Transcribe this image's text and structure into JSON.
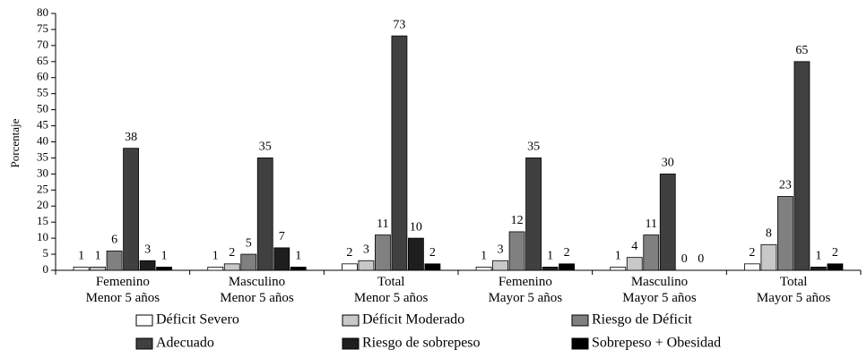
{
  "chart_data": {
    "type": "bar",
    "y_label": "Porcentaje",
    "categories": [
      "Femenino\nMenor 5 años",
      "Masculino\nMenor 5 años",
      "Total\nMenor 5 años",
      "Femenino\nMayor 5 años",
      "Masculino\nMayor 5 años",
      "Total\nMayor 5 años"
    ],
    "series": [
      {
        "name": "Déficit Severo",
        "color": "#ffffff",
        "values": [
          1,
          1,
          2,
          1,
          1,
          2
        ]
      },
      {
        "name": "Déficit Moderado",
        "color": "#c8c8c8",
        "values": [
          1,
          2,
          3,
          3,
          4,
          8
        ]
      },
      {
        "name": "Riesgo de Déficit",
        "color": "#808080",
        "values": [
          6,
          5,
          11,
          12,
          11,
          23
        ]
      },
      {
        "name": "Adecuado",
        "color": "#404040",
        "values": [
          38,
          35,
          73,
          35,
          30,
          65
        ]
      },
      {
        "name": "Riesgo de sobrepeso",
        "color": "#1e1e1e",
        "values": [
          3,
          7,
          10,
          1,
          0,
          1
        ]
      },
      {
        "name": "Sobrepeso + Obesidad",
        "color": "#000000",
        "values": [
          1,
          1,
          2,
          2,
          0,
          2
        ]
      }
    ],
    "ylim": [
      0,
      80
    ],
    "yticks": [
      0,
      5,
      10,
      15,
      20,
      25,
      30,
      35,
      40,
      45,
      50,
      55,
      60,
      65,
      70,
      75,
      80
    ],
    "grid": false
  }
}
